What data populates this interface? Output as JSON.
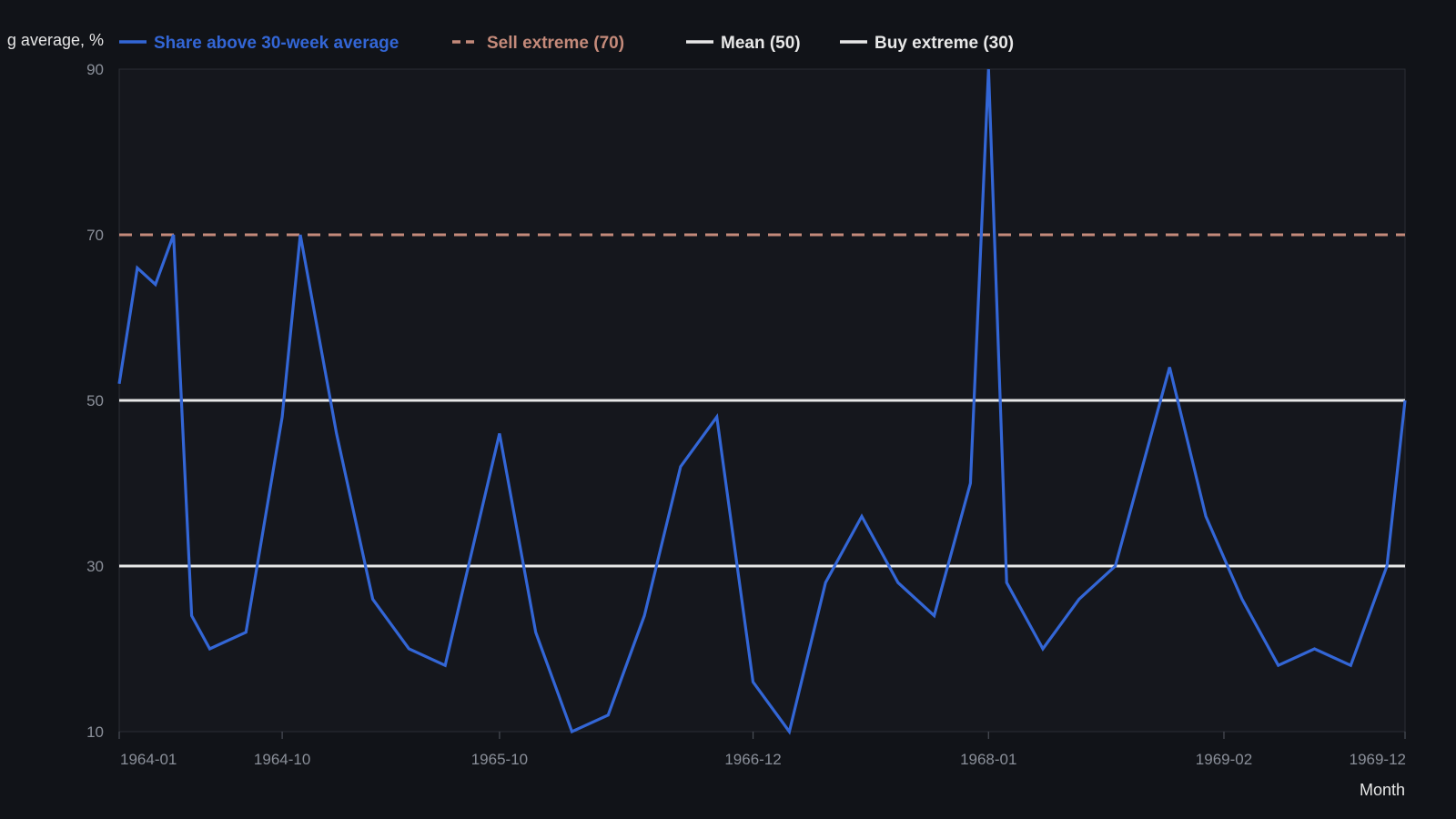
{
  "colors": {
    "background": "#111318",
    "plot_background": "#15171d",
    "series": "#3366d6",
    "sell_extreme": "#c48a7a",
    "mean": "#e8e8e8",
    "buy_extreme": "#e8e8e8",
    "tick_text": "#8a8f99",
    "axis_text": "#e6e6e6"
  },
  "chart_data": {
    "type": "line",
    "title": "",
    "xlabel": "Month",
    "ylabel": "g average, %",
    "ylim": [
      10,
      90
    ],
    "yticks": [
      10,
      30,
      50,
      70,
      90
    ],
    "xlim": [
      "1964-01",
      "1969-12"
    ],
    "xticks": [
      "1964-01",
      "1964-10",
      "1965-10",
      "1966-12",
      "1968-01",
      "1969-02",
      "1969-12"
    ],
    "grid": false,
    "legend_position": "top",
    "series": [
      {
        "name": "Share above 30-week average",
        "style": "solid",
        "x": [
          "1964-01",
          "1964-02",
          "1964-03",
          "1964-04",
          "1964-05",
          "1964-06",
          "1964-08",
          "1964-10",
          "1964-11",
          "1965-01",
          "1965-03",
          "1965-05",
          "1965-07",
          "1965-10",
          "1965-12",
          "1966-02",
          "1966-04",
          "1966-06",
          "1966-08",
          "1966-10",
          "1966-12",
          "1967-02",
          "1967-04",
          "1967-06",
          "1967-08",
          "1967-10",
          "1967-12",
          "1968-01",
          "1968-02",
          "1968-04",
          "1968-06",
          "1968-08",
          "1968-11",
          "1969-01",
          "1969-03",
          "1969-05",
          "1969-07",
          "1969-09",
          "1969-11",
          "1969-12"
        ],
        "y": [
          52,
          66,
          64,
          70,
          24,
          20,
          22,
          48,
          70,
          46,
          26,
          20,
          18,
          46,
          22,
          10,
          12,
          24,
          42,
          48,
          16,
          10,
          28,
          36,
          28,
          24,
          40,
          90,
          28,
          20,
          26,
          30,
          54,
          36,
          26,
          18,
          20,
          18,
          30,
          50
        ]
      },
      {
        "name": "Sell extreme (70)",
        "style": "dashed",
        "value": 70
      },
      {
        "name": "Mean (50)",
        "style": "solid",
        "value": 50
      },
      {
        "name": "Buy extreme (30)",
        "style": "solid",
        "value": 30
      }
    ]
  }
}
